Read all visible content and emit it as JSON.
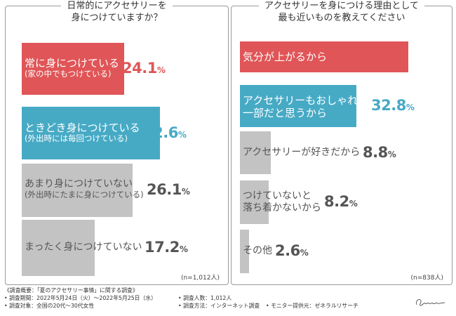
{
  "colors": {
    "red": "#e05557",
    "blue": "#47aac5",
    "gray": "#c3c3c3",
    "gray_text": "#555555",
    "white": "#ffffff"
  },
  "chart_data": [
    {
      "type": "bar",
      "orientation": "horizontal",
      "title_lines": [
        "日常的にアクセサリーを",
        "身につけていますか？"
      ],
      "sample_note": "(n=1,012人)",
      "categories": [
        {
          "label_line1": "常に身につけている",
          "label_line2": "(家の中でもつけている)",
          "value": 24.1,
          "color": "red"
        },
        {
          "label_line1": "ときどき身につけている",
          "label_line2": "(外出時には毎回つけている)",
          "value": 32.6,
          "color": "blue"
        },
        {
          "label_line1": "あまり身につけていない",
          "label_line2": "(外出時にたまに身につけている)",
          "value": 26.1,
          "color": "gray"
        },
        {
          "label_line1": "まったく身につけていない",
          "label_line2": "",
          "value": 17.2,
          "color": "gray"
        }
      ],
      "unit": "%"
    },
    {
      "type": "bar",
      "orientation": "horizontal",
      "title_lines": [
        "アクセサリーを身につける理由として",
        "最も近いものを教えてください"
      ],
      "sample_note": "(n=838人)",
      "categories": [
        {
          "label_line1": "気分が上がるから",
          "label_line2": "",
          "value": 47.6,
          "color": "red"
        },
        {
          "label_line1": "アクセサリーもおしゃれの",
          "label_line2": "一部だと思うから",
          "value": 32.8,
          "color": "blue"
        },
        {
          "label_line1": "アクセサリーが好きだから",
          "label_line2": "",
          "value": 8.8,
          "color": "gray"
        },
        {
          "label_line1": "つけていないと",
          "label_line2": "落ち着かないから",
          "value": 8.2,
          "color": "gray"
        },
        {
          "label_line1": "その他",
          "label_line2": "",
          "value": 2.6,
          "color": "gray"
        }
      ],
      "unit": "%"
    }
  ],
  "footer": {
    "overview": "《調査概要：「夏のアクセサリー事情」に関する調査》",
    "period": "• 調査期間：2022年5月24日（火）～2022年5月25日（水）",
    "people": "• 調査人数：1,012人",
    "target": "• 調査対象：全国の20代～30代女性",
    "method": "• 調査方法：インターネット調査",
    "provider": "• モニター提供元：ゼネラルリサーチ"
  },
  "signature_text": "Genzemi"
}
